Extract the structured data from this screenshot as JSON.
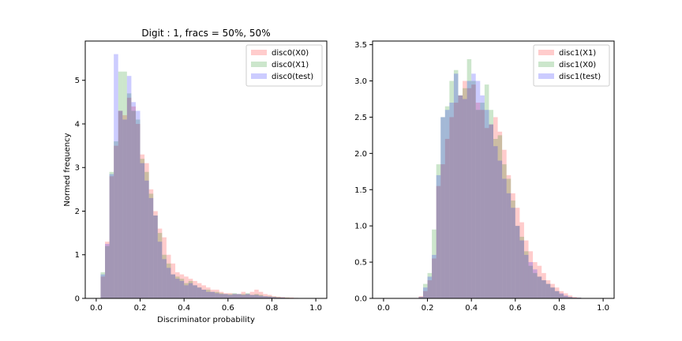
{
  "chart_data": [
    {
      "type": "bar",
      "title": "Digit : 1, fracs = 50%, 50%",
      "xlabel": "Discriminator probability",
      "ylabel": "Normed frequency",
      "xlim": [
        -0.05,
        1.05
      ],
      "ylim": [
        0,
        5.9
      ],
      "xticks": [
        "0.0",
        "0.2",
        "0.4",
        "0.6",
        "0.8",
        "1.0"
      ],
      "yticks": [
        "0",
        "1",
        "2",
        "3",
        "4",
        "5"
      ],
      "legend_position": "top-right",
      "grid": false,
      "bin_width": 0.02,
      "bin_start": 0.02,
      "series": [
        {
          "name": "disc0(X0)",
          "color": "#ff0000",
          "opacity": 0.2,
          "values": [
            0.5,
            1.3,
            2.8,
            3.5,
            4.3,
            4.2,
            4.6,
            4.4,
            4.0,
            3.3,
            3.1,
            2.5,
            2.0,
            1.6,
            1.4,
            1.0,
            0.8,
            0.6,
            0.55,
            0.5,
            0.45,
            0.4,
            0.35,
            0.3,
            0.25,
            0.2,
            0.2,
            0.15,
            0.12,
            0.12,
            0.1,
            0.1,
            0.15,
            0.1,
            0.15,
            0.2,
            0.15,
            0.1,
            0.08,
            0.05,
            0.04,
            0.03,
            0.02,
            0.02,
            0.01
          ]
        },
        {
          "name": "disc0(X1)",
          "color": "#008000",
          "opacity": 0.2,
          "values": [
            0.6,
            1.2,
            2.9,
            3.6,
            5.2,
            5.2,
            4.7,
            4.3,
            4.1,
            3.2,
            2.9,
            2.4,
            1.9,
            1.5,
            1.0,
            0.8,
            0.55,
            0.5,
            0.45,
            0.35,
            0.4,
            0.3,
            0.25,
            0.2,
            0.2,
            0.15,
            0.15,
            0.12,
            0.1,
            0.1,
            0.12,
            0.1,
            0.1,
            0.12,
            0.08,
            0.1,
            0.08,
            0.05,
            0.05,
            0.04,
            0.03,
            0.02,
            0.02,
            0.01,
            0.01
          ]
        },
        {
          "name": "disc0(test)",
          "color": "#0000ff",
          "opacity": 0.2,
          "values": [
            0.55,
            1.25,
            2.85,
            5.6,
            4.3,
            4.1,
            5.1,
            4.5,
            4.3,
            3.1,
            2.7,
            2.3,
            1.9,
            1.3,
            0.9,
            0.7,
            0.55,
            0.45,
            0.4,
            0.3,
            0.35,
            0.3,
            0.25,
            0.2,
            0.15,
            0.15,
            0.12,
            0.1,
            0.1,
            0.08,
            0.1,
            0.1,
            0.08,
            0.1,
            0.08,
            0.08,
            0.06,
            0.05,
            0.04,
            0.03,
            0.02,
            0.02,
            0.01,
            0.01,
            0.01
          ]
        }
      ]
    },
    {
      "type": "bar",
      "title": "",
      "xlabel": "",
      "ylabel": "",
      "xlim": [
        -0.05,
        1.05
      ],
      "ylim": [
        0,
        3.55
      ],
      "xticks": [
        "0.0",
        "0.2",
        "0.4",
        "0.6",
        "0.8",
        "1.0"
      ],
      "yticks": [
        "0.0",
        "0.5",
        "1.0",
        "1.5",
        "2.0",
        "2.5",
        "3.0",
        "3.5"
      ],
      "legend_position": "top-right",
      "grid": false,
      "bin_width": 0.02,
      "bin_start": 0.16,
      "series": [
        {
          "name": "disc1(X1)",
          "color": "#ff0000",
          "opacity": 0.2,
          "values": [
            0.03,
            0.1,
            0.25,
            0.55,
            1.55,
            1.85,
            2.2,
            2.5,
            2.7,
            2.8,
            3.0,
            2.9,
            2.95,
            2.7,
            2.6,
            2.35,
            2.4,
            2.5,
            2.3,
            2.05,
            1.7,
            1.45,
            1.25,
            1.05,
            0.8,
            0.65,
            0.5,
            0.45,
            0.35,
            0.25,
            0.2,
            0.15,
            0.1,
            0.07,
            0.04,
            0.02,
            0.01
          ]
        },
        {
          "name": "disc1(X0)",
          "color": "#008000",
          "opacity": 0.2,
          "values": [
            0.02,
            0.2,
            0.35,
            0.95,
            1.85,
            2.5,
            2.65,
            3.0,
            3.15,
            2.8,
            2.9,
            3.3,
            3.0,
            2.6,
            2.7,
            2.95,
            2.6,
            2.2,
            2.25,
            1.85,
            1.65,
            1.35,
            1.0,
            0.85,
            0.65,
            0.45,
            0.35,
            0.3,
            0.25,
            0.2,
            0.15,
            0.1,
            0.06,
            0.03,
            0.02,
            0.01,
            0.01
          ]
        },
        {
          "name": "disc1(test)",
          "color": "#0000ff",
          "opacity": 0.2,
          "values": [
            0.02,
            0.15,
            0.3,
            0.6,
            1.7,
            2.5,
            2.6,
            2.7,
            3.1,
            2.8,
            2.75,
            3.0,
            3.1,
            3.0,
            2.8,
            2.6,
            2.4,
            2.1,
            1.9,
            1.65,
            1.45,
            1.25,
            1.0,
            0.8,
            0.6,
            0.5,
            0.4,
            0.3,
            0.25,
            0.2,
            0.15,
            0.1,
            0.07,
            0.04,
            0.02,
            0.01,
            0.01
          ]
        }
      ]
    }
  ]
}
